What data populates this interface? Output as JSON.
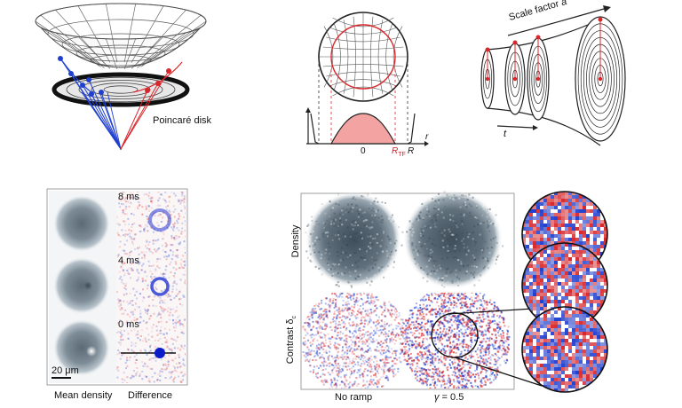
{
  "top": {
    "hyperboloid": {
      "label": "Poincaré disk"
    },
    "profile": {
      "axis_r": "r",
      "tick_0": "0",
      "tick_rtf": "R",
      "tick_rtf_sub": "TF",
      "tick_r": "R"
    },
    "funnel": {
      "title": "Scale factor",
      "title_var": "a",
      "axis_t": "t"
    }
  },
  "bottom_left": {
    "times": [
      "8 ms",
      "4 ms",
      "0 ms"
    ],
    "scalebar": "20 μm",
    "col_labels": [
      "Mean density",
      "Difference"
    ]
  },
  "bottom_right": {
    "row_density": "Density",
    "row_contrast": "Contrast δ",
    "row_contrast_sub": "c",
    "col_no_ramp": "No ramp",
    "col_gamma_var": "γ",
    "col_gamma_val": " = 0.5"
  },
  "colors": {
    "red": "#d9262b",
    "blue": "#1f3fd0",
    "density": "#4a5a66",
    "profile_fill": "#f4a3a3"
  }
}
